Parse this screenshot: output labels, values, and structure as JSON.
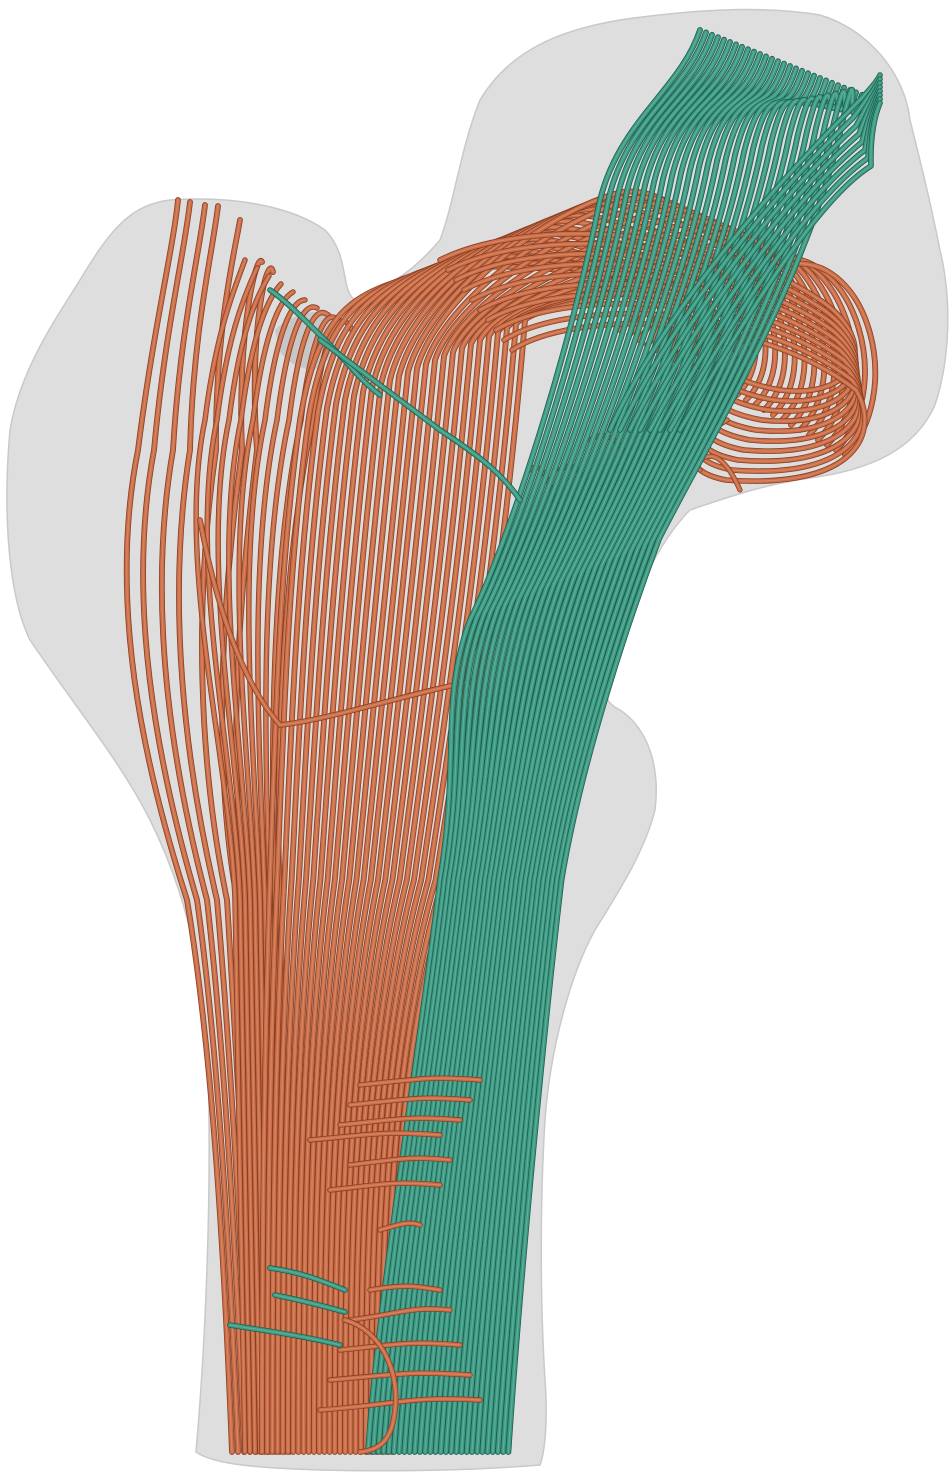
{
  "scene": {
    "bone_color": "#d7d7d7",
    "compressive_color": "#c96f4b",
    "compressive_highlight": "#e8956f",
    "compressive_shadow": "#8a3f22",
    "tensile_color": "#3f9a84",
    "tensile_highlight": "#6cc3ac",
    "tensile_shadow": "#1f5e4f"
  }
}
